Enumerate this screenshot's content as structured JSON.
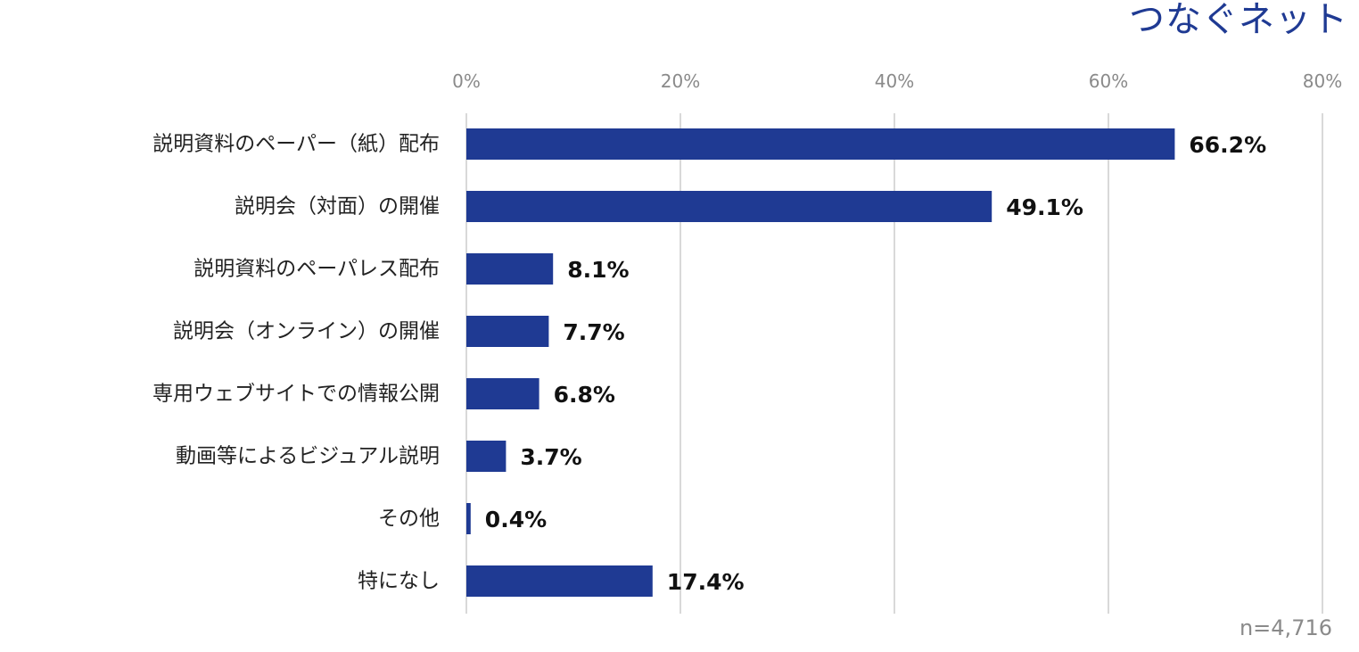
{
  "brand": {
    "logo_text": "つなぐネット",
    "color": "#1f3a93"
  },
  "note": {
    "sample_size": "n=4,716"
  },
  "chart_data": {
    "type": "bar",
    "orientation": "horizontal",
    "categories": [
      "説明資料のペーパー（紙）配布",
      "説明会（対面）の開催",
      "説明資料のペーパレス配布",
      "説明会（オンライン）の開催",
      "専用ウェブサイトでの情報公開",
      "動画等によるビジュアル説明",
      "その他",
      "特になし"
    ],
    "values": [
      66.2,
      49.1,
      8.1,
      7.7,
      6.8,
      3.7,
      0.4,
      17.4
    ],
    "value_labels": [
      "66.2%",
      "49.1%",
      "8.1%",
      "7.7%",
      "6.8%",
      "3.7%",
      "0.4%",
      "17.4%"
    ],
    "xlim": [
      0,
      80
    ],
    "xticks": [
      0,
      20,
      40,
      60,
      80
    ],
    "xtick_labels": [
      "0%",
      "20%",
      "40%",
      "60%",
      "80%"
    ],
    "x_axis_position": "top",
    "grid": true,
    "bar_color": "#1f3a93",
    "grid_color": "#d9d9d9",
    "title": "",
    "xlabel": "",
    "ylabel": ""
  }
}
